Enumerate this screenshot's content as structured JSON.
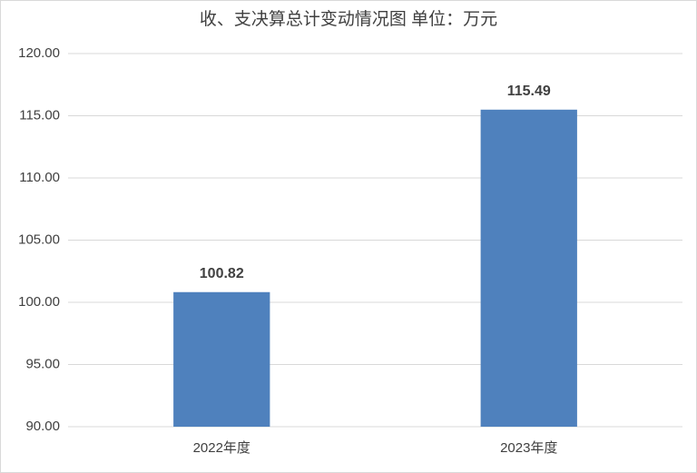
{
  "chart_data": {
    "type": "bar",
    "title": "收、支决算总计变动情况图  单位：万元",
    "categories": [
      "2022年度",
      "2023年度"
    ],
    "values": [
      100.82,
      115.49
    ],
    "color": "#4f81bd",
    "ylim": [
      90,
      120
    ],
    "yticks": [
      {
        "value": 90,
        "label": "90.00"
      },
      {
        "value": 95,
        "label": "95.00"
      },
      {
        "value": 100,
        "label": "100.00"
      },
      {
        "value": 105,
        "label": "105.00"
      },
      {
        "value": 110,
        "label": "110.00"
      },
      {
        "value": 115,
        "label": "115.00"
      },
      {
        "value": 120,
        "label": "120.00"
      }
    ],
    "grid": true
  }
}
